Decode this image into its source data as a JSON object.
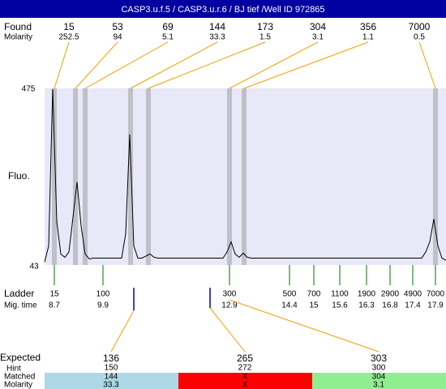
{
  "title": "CASP3.u.f.5 / CASP3.u.r.6 / BJ tief /Well ID 972865",
  "found": {
    "label": "Found",
    "sizes": [
      15,
      53,
      69,
      144,
      173,
      304,
      356,
      7000
    ],
    "molarity_label": "Molarity",
    "molarity": [
      252.5,
      94,
      5.1,
      33.3,
      1.5,
      3.1,
      1.1,
      0.5
    ]
  },
  "y_axis": {
    "label": "Fluo.",
    "min": 43,
    "max": 475
  },
  "trace": [
    50,
    90,
    475,
    150,
    70,
    62,
    75,
    160,
    247,
    140,
    70,
    58,
    60,
    60,
    60,
    60,
    60,
    60,
    60,
    60,
    120,
    364,
    90,
    60,
    60,
    65,
    70,
    62,
    60,
    60,
    60,
    60,
    60,
    60,
    60,
    60,
    60,
    60,
    60,
    60,
    60,
    60,
    60,
    60,
    60,
    75,
    100,
    70,
    62,
    72,
    62,
    60,
    60,
    60,
    60,
    60,
    60,
    60,
    60,
    60,
    60,
    60,
    60,
    60,
    60,
    60,
    60,
    60,
    60,
    60,
    60,
    60,
    60,
    60,
    60,
    60,
    60,
    60,
    60,
    60,
    60,
    60,
    60,
    60,
    60,
    60,
    60,
    60,
    60,
    60,
    60,
    60,
    60,
    60,
    75,
    100,
    156,
    90,
    60,
    55
  ],
  "ladder": {
    "label": "Ladder",
    "sizes": [
      15,
      100,
      300,
      500,
      700,
      1100,
      1900,
      2900,
      4900,
      7000
    ],
    "mig_time_label": "Mig. time",
    "mig_times": [
      8.7,
      9.9,
      12.9,
      14.4,
      15,
      15.6,
      16.3,
      16.8,
      17.4,
      17.9
    ]
  },
  "expected": {
    "label": "Expected",
    "values": [
      136,
      265,
      303
    ],
    "hint_label": "Hint",
    "hints": [
      150,
      272,
      300
    ],
    "matched_label": "Matched",
    "matched": [
      144,
      "X",
      304
    ],
    "molarity_label": "Molarity",
    "molarity": [
      33.3,
      "X",
      3.1
    ],
    "colors": [
      "#add8e6",
      "#ff0000",
      "#90ee90"
    ]
  }
}
